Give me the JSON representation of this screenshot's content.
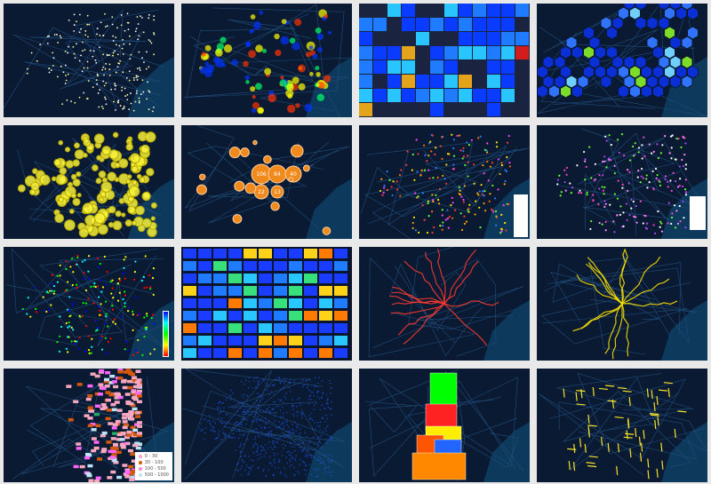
{
  "gallery": {
    "tiles": [
      {
        "kind": "point-glow",
        "colors": [
          "#ffffff",
          "#ffff99"
        ]
      },
      {
        "kind": "heatmap",
        "colors": [
          "#0033ff",
          "#00ff66",
          "#ffff00",
          "#ff3300"
        ]
      },
      {
        "kind": "grid",
        "colors": [
          "#0a3cff",
          "#1f7bff",
          "#28c5ff",
          "#e3a31b",
          "#d31c1c"
        ]
      },
      {
        "kind": "hexbin",
        "colors": [
          "#0a2fd6",
          "#2f73ff",
          "#6fd0ff",
          "#7ddc29"
        ]
      },
      {
        "kind": "bubble",
        "colors": [
          "#f8f33a"
        ]
      },
      {
        "kind": "cluster",
        "colors": [
          "#f08a1d"
        ],
        "labels": [
          "106",
          "84",
          "40",
          "22",
          "13"
        ]
      },
      {
        "kind": "category-points",
        "colors": [
          "#2a7bff",
          "#ff6a00",
          "#ff3b3b",
          "#ffe600",
          "#66ff33",
          "#ff44ff",
          "#ffa500"
        ]
      },
      {
        "kind": "category-points",
        "colors": [
          "#ffffff",
          "#66ff33",
          "#aa44ff",
          "#ff44cc",
          "#ff88ff"
        ]
      },
      {
        "kind": "ramp-points",
        "colors": [
          "#0000ff",
          "#00ffff",
          "#00ff00",
          "#ffff00",
          "#ff0000"
        ]
      },
      {
        "kind": "grid-labeled",
        "colors": [
          "#1a3cff",
          "#1f7bff",
          "#29c7ff",
          "#37e07a",
          "#ffd21a",
          "#ff7a00"
        ]
      },
      {
        "kind": "lines",
        "colors": [
          "#ff3b30"
        ]
      },
      {
        "kind": "lines",
        "colors": [
          "#ffe600"
        ]
      },
      {
        "kind": "grid-legend",
        "colors": [
          "#f7a7c0",
          "#d4580b",
          "#ff66ff",
          "#bde3f7",
          "#22aa66"
        ]
      },
      {
        "kind": "dots-dense",
        "colors": [
          "#1d5cff"
        ]
      },
      {
        "kind": "choropleth",
        "colors": [
          "#00ff00",
          "#ff2222",
          "#ff8800",
          "#2266ff",
          "#ffee00",
          "#ff5500"
        ]
      },
      {
        "kind": "lines-segments",
        "colors": [
          "#f5e12a"
        ]
      }
    ],
    "legend_13": [
      "0 - 30",
      "30 - 100",
      "100 - 500",
      "500 - 1000"
    ]
  }
}
